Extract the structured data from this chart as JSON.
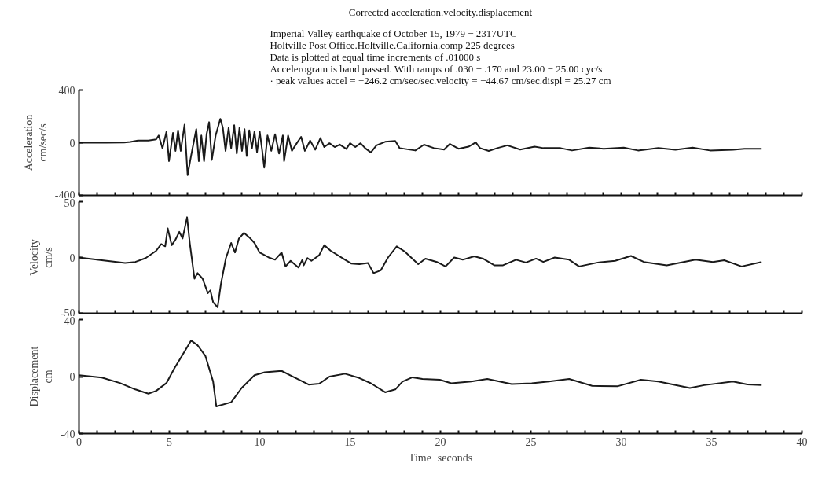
{
  "chart_data": [
    {
      "type": "line",
      "title": "Corrected acceleration.velocity.displacement",
      "subtitle": "Imperial Valley earthquake of October 15, 1979 − 2317UTC\nHoltville Post Office.Holtville.California.comp 225 degrees\nData is plotted at equal time increments of .01000 s\nAccelerogram is band passed. With ramps of .030 − .170 and 23.00 − 25.00 cyc/s\n· peak values accel = −246.2 cm/sec/sec.velocity = −44.67 cm/sec.displ = 25.27 cm",
      "ylabel": "Acceleration\ncm/sec/s",
      "x": [
        0,
        1.5,
        2.5,
        2.84,
        3.26,
        3.84,
        4.27,
        4.41,
        4.62,
        4.84,
        4.98,
        5.2,
        5.34,
        5.48,
        5.63,
        5.84,
        6.01,
        6.2,
        6.49,
        6.63,
        6.77,
        6.92,
        7.06,
        7.2,
        7.35,
        7.56,
        7.82,
        7.96,
        8.11,
        8.28,
        8.42,
        8.59,
        8.73,
        8.88,
        9.02,
        9.16,
        9.28,
        9.42,
        9.57,
        9.71,
        9.85,
        10.0,
        10.14,
        10.25,
        10.43,
        10.64,
        10.85,
        11.07,
        11.28,
        11.35,
        11.57,
        11.78,
        12.0,
        12.29,
        12.5,
        12.79,
        13.07,
        13.36,
        13.57,
        13.86,
        14.15,
        14.43,
        14.79,
        15.0,
        15.29,
        15.58,
        15.83,
        16.15,
        16.46,
        16.94,
        17.5,
        17.74,
        18.61,
        19.09,
        19.64,
        20.2,
        20.52,
        21.0,
        21.55,
        21.95,
        22.19,
        22.67,
        23.14,
        23.7,
        24.41,
        25.21,
        25.69,
        26.64,
        27.28,
        28.23,
        29.03,
        30.14,
        30.93,
        32.05,
        33.0,
        33.95,
        34.91,
        36.18,
        36.82,
        37.77
      ],
      "series": [
        {
          "color": "#1a1a1a",
          "values": [
            0,
            0,
            2,
            6,
            16,
            16,
            25,
            55,
            -43,
            84,
            -140,
            74,
            -62,
            94,
            -62,
            137,
            -246,
            -101,
            103,
            -140,
            55,
            -140,
            64,
            156,
            -131,
            55,
            181,
            113,
            -62,
            113,
            -43,
            133,
            -82,
            113,
            -62,
            103,
            -101,
            94,
            -43,
            84,
            -72,
            84,
            -62,
            -189,
            55,
            -62,
            64,
            -82,
            55,
            -140,
            55,
            -62,
            -14,
            45,
            -62,
            16,
            -53,
            35,
            -33,
            -4,
            -33,
            -14,
            -47,
            -4,
            -33,
            -4,
            -41,
            -74,
            -20,
            7,
            13,
            -41,
            -59,
            -15,
            -41,
            -52,
            -9,
            -46,
            -30,
            2,
            -41,
            -63,
            -41,
            -20,
            -52,
            -30,
            -41,
            -41,
            -59,
            -37,
            -46,
            -37,
            -59,
            -41,
            -54,
            -37,
            -59,
            -54,
            -46,
            -46
          ]
        }
      ],
      "xlim": [
        0,
        40
      ],
      "xticks": [
        0,
        {
          "value": 1,
          "label": null
        },
        {
          "value": 2,
          "label": null
        },
        {
          "value": 3,
          "label": null
        },
        {
          "value": 4,
          "label": null
        },
        5,
        {
          "value": 6,
          "label": null
        },
        {
          "value": 7,
          "label": null
        },
        {
          "value": 8,
          "label": null
        },
        {
          "value": 9,
          "label": null
        },
        10,
        {
          "value": 11,
          "label": null
        },
        {
          "value": 12,
          "label": null
        },
        {
          "value": 13,
          "label": null
        },
        {
          "value": 14,
          "label": null
        },
        15,
        {
          "value": 16,
          "label": null
        },
        {
          "value": 17,
          "label": null
        },
        {
          "value": 18,
          "label": null
        },
        {
          "value": 19,
          "label": null
        },
        20,
        {
          "value": 21,
          "label": null
        },
        {
          "value": 22,
          "label": null
        },
        {
          "value": 23,
          "label": null
        },
        {
          "value": 24,
          "label": null
        },
        25,
        {
          "value": 26,
          "label": null
        },
        {
          "value": 27,
          "label": null
        },
        {
          "value": 28,
          "label": null
        },
        {
          "value": 29,
          "label": null
        },
        30,
        {
          "value": 31,
          "label": null
        },
        {
          "value": 32,
          "label": null
        },
        {
          "value": 33,
          "label": null
        },
        {
          "value": 34,
          "label": null
        },
        35,
        {
          "value": 36,
          "label": null
        },
        {
          "value": 37,
          "label": null
        },
        {
          "value": 38,
          "label": null
        },
        {
          "value": 39,
          "label": null
        },
        40
      ],
      "ylim": [
        -400,
        400
      ],
      "yticks": [
        -400,
        0,
        400
      ],
      "grid": false,
      "tick_labels": "y"
    },
    {
      "type": "line",
      "ylabel": "Velocity\ncm/s",
      "x": [
        0,
        1.26,
        2.55,
        3.12,
        3.69,
        4.27,
        4.55,
        4.77,
        4.91,
        5.13,
        5.34,
        5.55,
        5.73,
        5.98,
        6.13,
        6.39,
        6.56,
        6.84,
        7.13,
        7.27,
        7.42,
        7.67,
        7.85,
        8.13,
        8.42,
        8.63,
        8.85,
        9.13,
        9.42,
        9.71,
        9.99,
        10.28,
        10.5,
        10.85,
        11.21,
        11.43,
        11.71,
        12.14,
        12.36,
        12.43,
        12.64,
        12.86,
        13.29,
        13.57,
        13.93,
        14.72,
        15.08,
        15.51,
        15.99,
        16.3,
        16.7,
        17.1,
        17.58,
        18.05,
        18.77,
        19.17,
        19.8,
        20.28,
        20.76,
        21.23,
        21.87,
        22.35,
        22.98,
        23.46,
        24.18,
        24.73,
        25.29,
        25.69,
        26.32,
        27.12,
        27.67,
        28.71,
        29.66,
        30.54,
        31.25,
        32.52,
        34.11,
        35.07,
        35.7,
        36.66,
        37.77
      ],
      "series": [
        {
          "color": "#1a1a1a",
          "values": [
            0,
            -2.5,
            -5,
            -4,
            -0.5,
            6,
            12,
            10,
            26,
            11,
            16,
            23,
            17,
            36,
            13,
            -19,
            -14,
            -19,
            -32,
            -29.5,
            -40,
            -44.6,
            -24,
            -0.5,
            13,
            4.5,
            17,
            22,
            18,
            13,
            4.5,
            2,
            0,
            -2,
            4.5,
            -8,
            -3,
            -9,
            -2,
            -7,
            -0.5,
            -3,
            2,
            11,
            6,
            -2,
            -5.5,
            -6,
            -5,
            -14,
            -11.5,
            0,
            10,
            5,
            -6,
            -1,
            -4,
            -8,
            0,
            -2,
            1,
            -1,
            -7,
            -7,
            -2,
            -4.5,
            -1,
            -4,
            0,
            -2,
            -8,
            -4.5,
            -3,
            1.4,
            -4,
            -7,
            -2,
            -4,
            -2.5,
            -8,
            -4
          ]
        }
      ],
      "xlim": [
        0,
        40
      ],
      "xticks": [
        0,
        {
          "value": 1,
          "label": null
        },
        {
          "value": 2,
          "label": null
        },
        {
          "value": 3,
          "label": null
        },
        {
          "value": 4,
          "label": null
        },
        5,
        {
          "value": 6,
          "label": null
        },
        {
          "value": 7,
          "label": null
        },
        {
          "value": 8,
          "label": null
        },
        {
          "value": 9,
          "label": null
        },
        10,
        {
          "value": 11,
          "label": null
        },
        {
          "value": 12,
          "label": null
        },
        {
          "value": 13,
          "label": null
        },
        {
          "value": 14,
          "label": null
        },
        15,
        {
          "value": 16,
          "label": null
        },
        {
          "value": 17,
          "label": null
        },
        {
          "value": 18,
          "label": null
        },
        {
          "value": 19,
          "label": null
        },
        20,
        {
          "value": 21,
          "label": null
        },
        {
          "value": 22,
          "label": null
        },
        {
          "value": 23,
          "label": null
        },
        {
          "value": 24,
          "label": null
        },
        25,
        {
          "value": 26,
          "label": null
        },
        {
          "value": 27,
          "label": null
        },
        {
          "value": 28,
          "label": null
        },
        {
          "value": 29,
          "label": null
        },
        30,
        {
          "value": 31,
          "label": null
        },
        {
          "value": 32,
          "label": null
        },
        {
          "value": 33,
          "label": null
        },
        {
          "value": 34,
          "label": null
        },
        35,
        {
          "value": 36,
          "label": null
        },
        {
          "value": 37,
          "label": null
        },
        {
          "value": 38,
          "label": null
        },
        {
          "value": 39,
          "label": null
        },
        40
      ],
      "ylim": [
        -50,
        50
      ],
      "yticks": [
        -50,
        0,
        50
      ],
      "grid": false,
      "tick_labels": "y"
    },
    {
      "type": "line",
      "ylabel": "Displacement\ncm",
      "xlabel": "Time−seconds",
      "x": [
        0,
        1.26,
        2.26,
        3.12,
        3.84,
        4.27,
        4.84,
        5.27,
        5.7,
        6.2,
        6.56,
        6.99,
        7.42,
        7.6,
        8.42,
        9.0,
        9.71,
        10.28,
        11.21,
        11.71,
        12.71,
        13.29,
        13.86,
        14.72,
        15.51,
        16.15,
        16.94,
        17.5,
        17.9,
        18.45,
        19.0,
        19.96,
        20.6,
        21.71,
        22.59,
        23.94,
        25.05,
        26.0,
        27.12,
        28.39,
        29.82,
        31.09,
        32.05,
        33.8,
        34.59,
        36.18,
        36.98,
        37.77
      ],
      "series": [
        {
          "color": "#1a1a1a",
          "values": [
            1,
            -0.7,
            -4.5,
            -9,
            -12,
            -10,
            -4.5,
            5.6,
            14.6,
            25.3,
            22,
            14.6,
            -3.4,
            -21,
            -18,
            -8,
            1,
            3,
            4,
            0.7,
            -5.6,
            -5,
            0,
            2,
            -1,
            -4.7,
            -11,
            -9,
            -3.5,
            -0.5,
            -1.7,
            -2.2,
            -4.7,
            -3.5,
            -1.7,
            -5.2,
            -4.7,
            -3.5,
            -1.7,
            -6.5,
            -6.7,
            -2.2,
            -3.5,
            -8,
            -6,
            -3.5,
            -5.5,
            -6
          ]
        }
      ],
      "xlim": [
        0,
        40
      ],
      "xticks": [
        0,
        {
          "value": 1,
          "label": null
        },
        {
          "value": 2,
          "label": null
        },
        {
          "value": 3,
          "label": null
        },
        {
          "value": 4,
          "label": null
        },
        5,
        {
          "value": 6,
          "label": null
        },
        {
          "value": 7,
          "label": null
        },
        {
          "value": 8,
          "label": null
        },
        {
          "value": 9,
          "label": null
        },
        10,
        {
          "value": 11,
          "label": null
        },
        {
          "value": 12,
          "label": null
        },
        {
          "value": 13,
          "label": null
        },
        {
          "value": 14,
          "label": null
        },
        15,
        {
          "value": 16,
          "label": null
        },
        {
          "value": 17,
          "label": null
        },
        {
          "value": 18,
          "label": null
        },
        {
          "value": 19,
          "label": null
        },
        20,
        {
          "value": 21,
          "label": null
        },
        {
          "value": 22,
          "label": null
        },
        {
          "value": 23,
          "label": null
        },
        {
          "value": 24,
          "label": null
        },
        25,
        {
          "value": 26,
          "label": null
        },
        {
          "value": 27,
          "label": null
        },
        {
          "value": 28,
          "label": null
        },
        {
          "value": 29,
          "label": null
        },
        30,
        {
          "value": 31,
          "label": null
        },
        {
          "value": 32,
          "label": null
        },
        {
          "value": 33,
          "label": null
        },
        {
          "value": 34,
          "label": null
        },
        35,
        {
          "value": 36,
          "label": null
        },
        {
          "value": 37,
          "label": null
        },
        {
          "value": 38,
          "label": null
        },
        {
          "value": 39,
          "label": null
        },
        40
      ],
      "ylim": [
        -40,
        40
      ],
      "yticks": [
        -40,
        0,
        40
      ],
      "grid": false
    }
  ]
}
